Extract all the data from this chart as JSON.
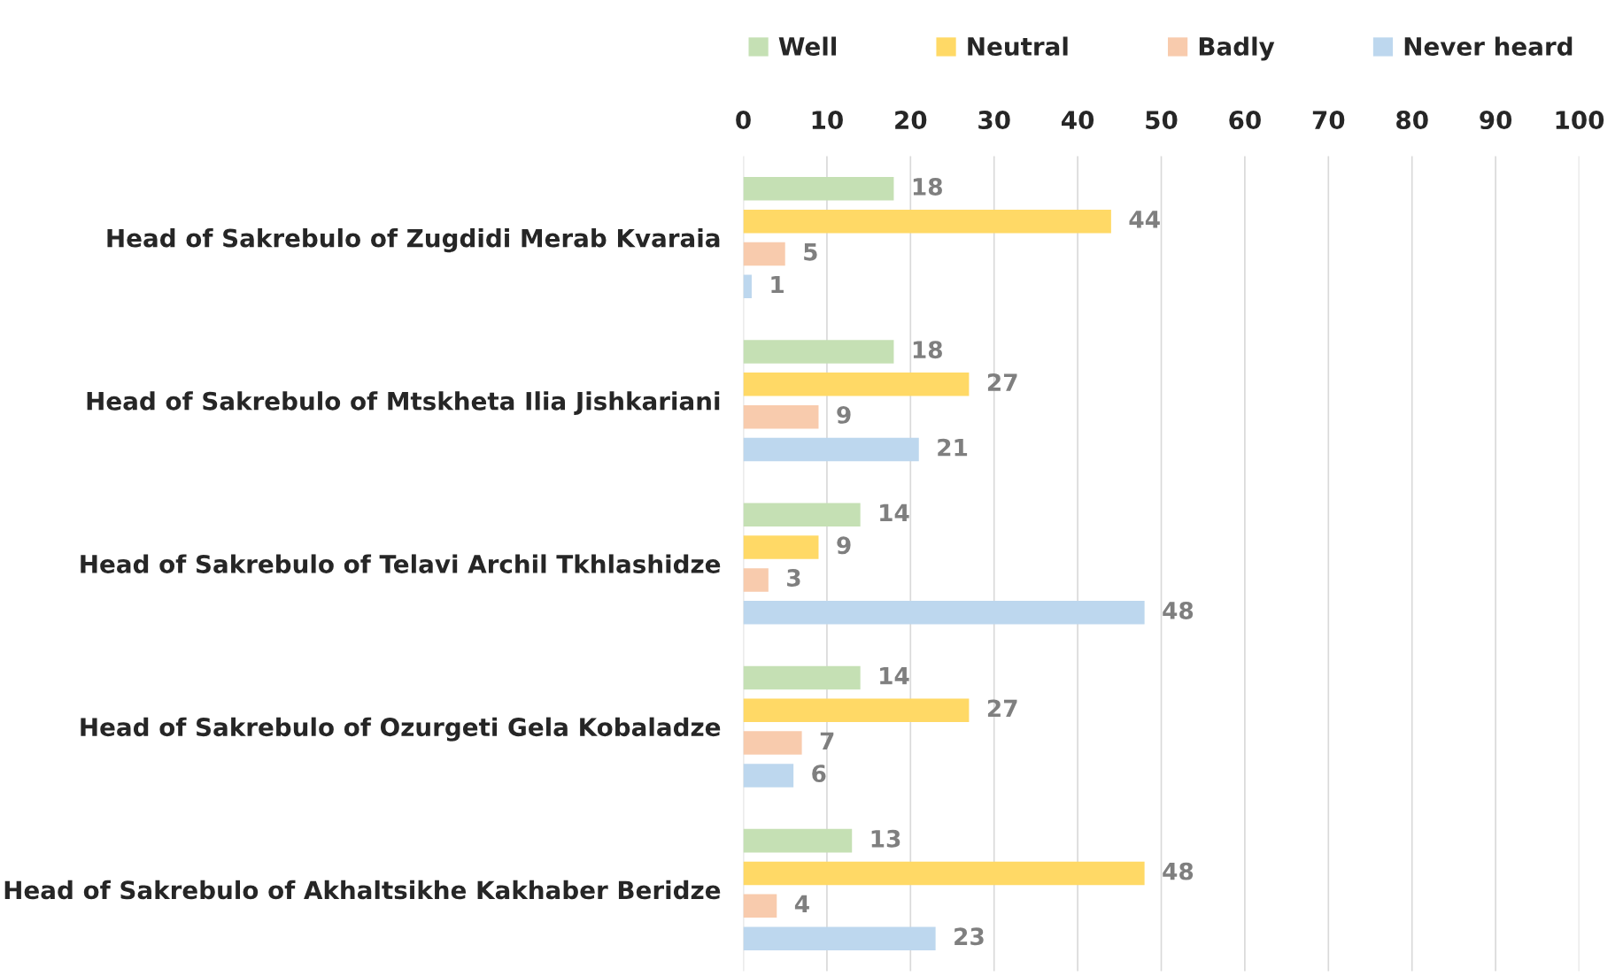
{
  "chart_data": {
    "type": "bar",
    "orientation": "horizontal",
    "categories": [
      "Head of Sakrebulo of Zugdidi Merab Kvaraia",
      "Head of Sakrebulo of Mtskheta Ilia Jishkariani",
      "Head of Sakrebulo of Telavi Archil Tkhlashidze",
      "Head of Sakrebulo of Ozurgeti Gela Kobaladze",
      "Head of Sakrebulo of Akhaltsikhe Kakhaber Beridze"
    ],
    "series": [
      {
        "name": "Well",
        "color": "#c5e0b4",
        "values": [
          18,
          18,
          14,
          14,
          13
        ]
      },
      {
        "name": "Neutral",
        "color": "#ffd966",
        "values": [
          44,
          27,
          9,
          27,
          48
        ]
      },
      {
        "name": "Badly",
        "color": "#f8cbad",
        "values": [
          5,
          9,
          3,
          7,
          4
        ]
      },
      {
        "name": "Never heard",
        "color": "#bdd7ee",
        "values": [
          1,
          21,
          48,
          6,
          23
        ]
      }
    ],
    "xlim": [
      0,
      100
    ],
    "xticks": [
      0,
      10,
      20,
      30,
      40,
      50,
      60,
      70,
      80,
      90,
      100
    ],
    "grid": "x",
    "legend": "top",
    "data_labels": true
  }
}
